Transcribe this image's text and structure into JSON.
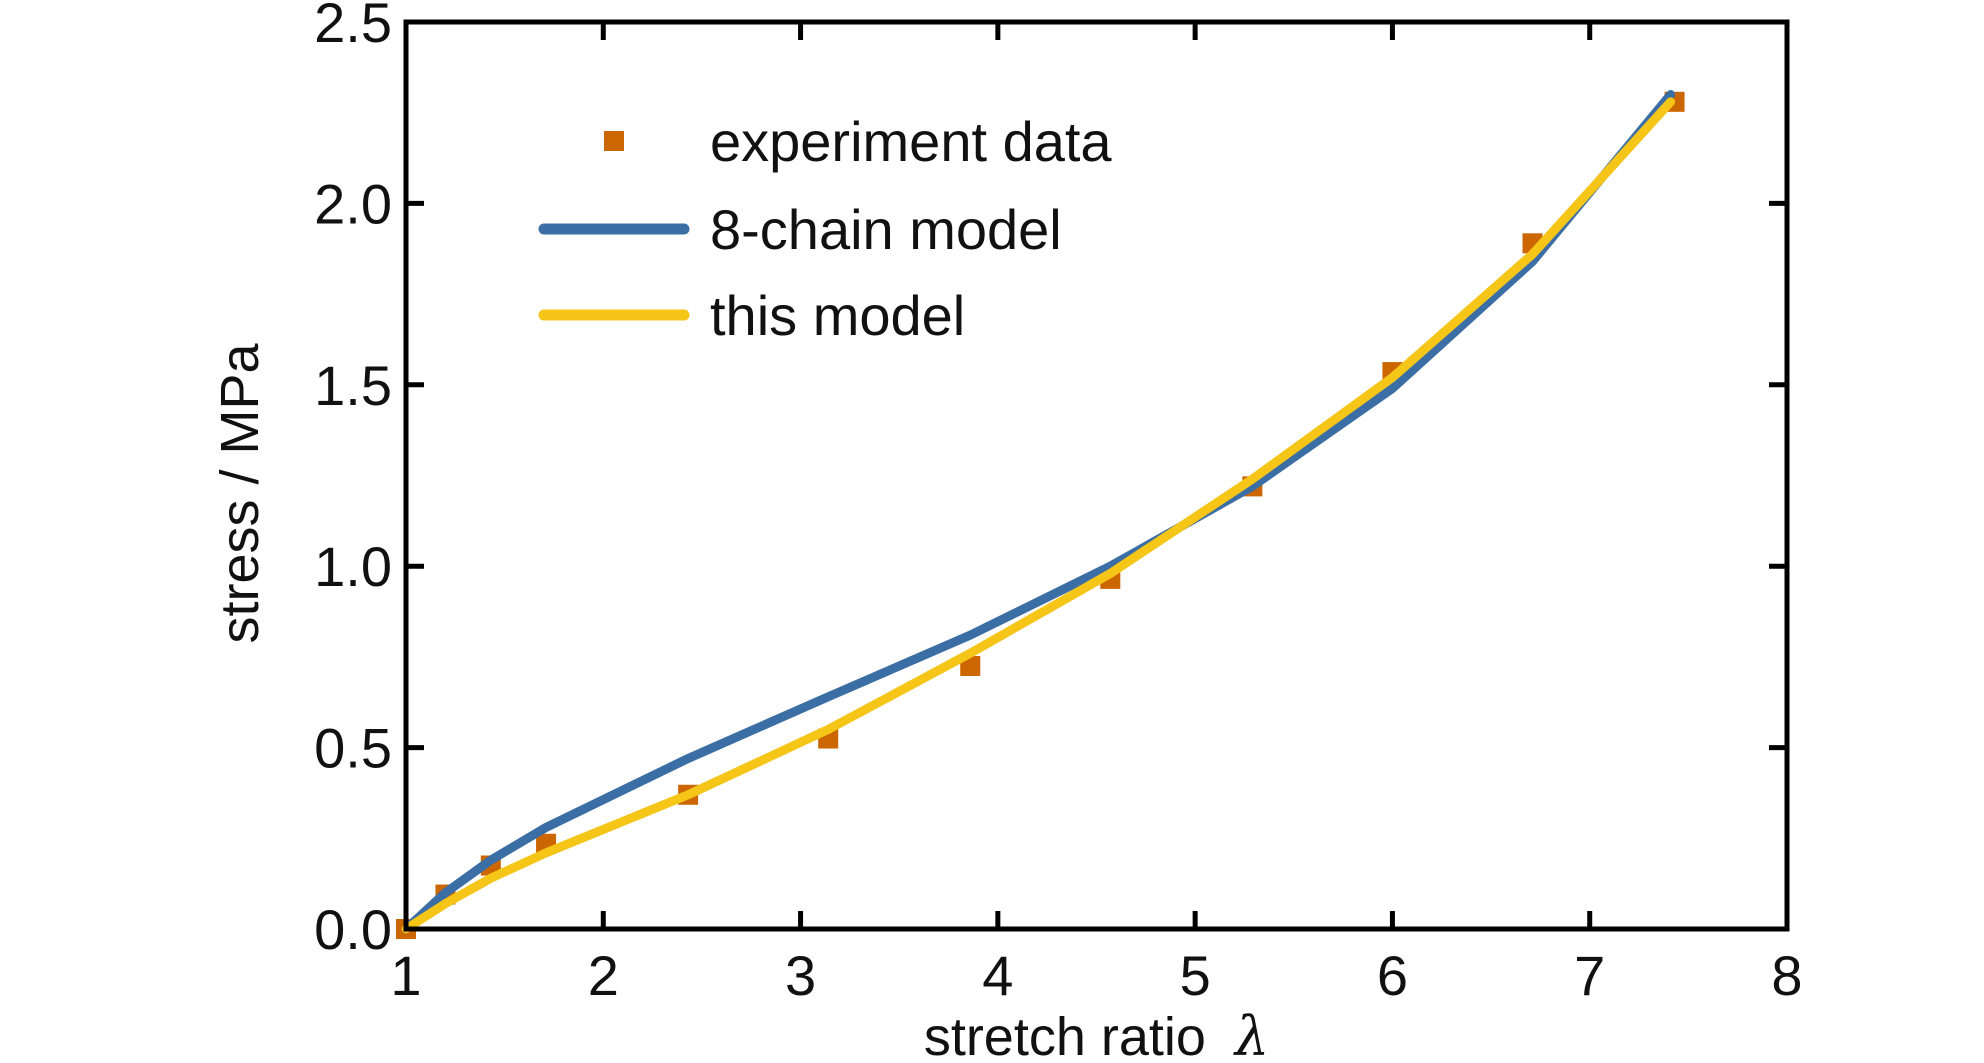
{
  "chart_data": {
    "type": "line",
    "xlabel": "stretch ratio",
    "xlabel_symbol": "λ",
    "ylabel": "stress / MPa",
    "xlim": [
      1,
      8
    ],
    "ylim": [
      0,
      2.5
    ],
    "x_ticks": [
      1,
      2,
      3,
      4,
      5,
      6,
      7,
      8
    ],
    "x_tick_labels": [
      "1",
      "2",
      "3",
      "4",
      "5",
      "6",
      "7",
      "8"
    ],
    "y_ticks": [
      0,
      0.5,
      1.0,
      1.5,
      2.0,
      2.5
    ],
    "y_tick_labels": [
      "0.0",
      "0.5",
      "1.0",
      "1.5",
      "2.0",
      "2.5"
    ],
    "grid": false,
    "legend_position": "top-left",
    "series": [
      {
        "name": "experiment data",
        "kind": "scatter",
        "marker": "square",
        "color": "#CC6600",
        "x": [
          1.0,
          1.2,
          1.43,
          1.71,
          2.43,
          3.14,
          3.86,
          4.57,
          5.29,
          6.0,
          6.71,
          7.43
        ],
        "y": [
          0.0,
          0.095,
          0.175,
          0.235,
          0.37,
          0.525,
          0.725,
          0.965,
          1.22,
          1.535,
          1.89,
          2.28
        ]
      },
      {
        "name": "8-chain model",
        "kind": "line",
        "color": "#3A6EA5",
        "x": [
          1.0,
          1.2,
          1.43,
          1.71,
          2.43,
          3.14,
          3.86,
          4.57,
          5.29,
          6.0,
          6.71,
          7.41
        ],
        "y": [
          0.0,
          0.1,
          0.19,
          0.28,
          0.47,
          0.64,
          0.81,
          1.0,
          1.22,
          1.49,
          1.84,
          2.3
        ]
      },
      {
        "name": "this model",
        "kind": "line",
        "color": "#F5C518",
        "x": [
          1.0,
          1.2,
          1.43,
          1.71,
          2.43,
          3.14,
          3.86,
          4.57,
          5.29,
          6.0,
          6.71,
          7.41
        ],
        "y": [
          0.0,
          0.07,
          0.14,
          0.21,
          0.37,
          0.55,
          0.76,
          0.98,
          1.24,
          1.52,
          1.86,
          2.28
        ]
      }
    ]
  }
}
